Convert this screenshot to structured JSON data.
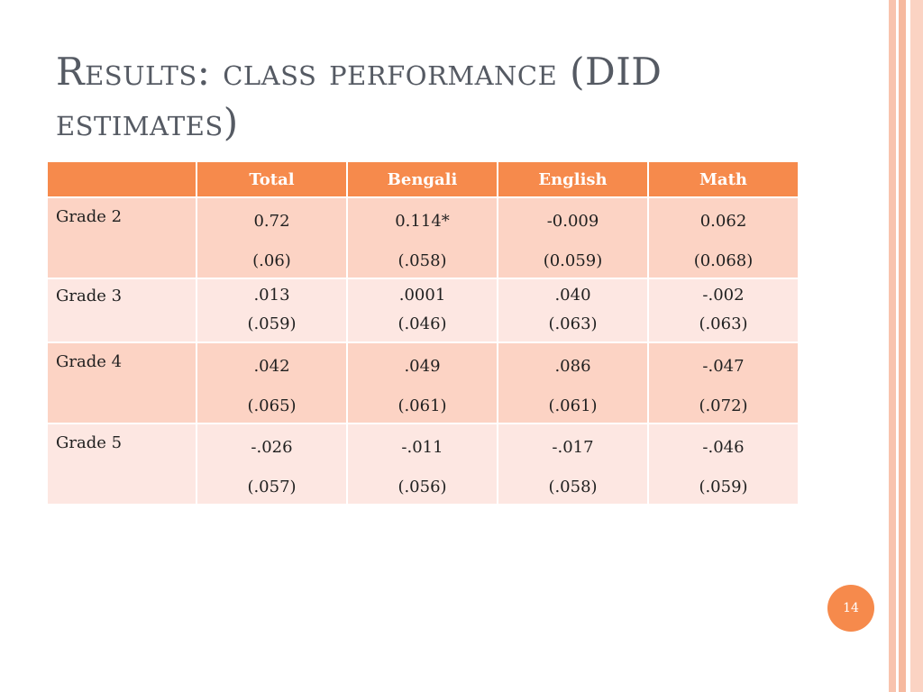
{
  "slide": {
    "title": "Results: class performance (DID estimates)",
    "page_number": "14",
    "colors": {
      "accent": "#f68a4c",
      "row_dark": "#fcd3c4",
      "row_light": "#fde7e2",
      "title_text": "#555a63"
    }
  },
  "table": {
    "headers": [
      "",
      "Total",
      "Bengali",
      "English",
      "Math"
    ],
    "rows": [
      {
        "label": "Grade 2",
        "cells": [
          {
            "coef": "0.72",
            "se": "(.06)"
          },
          {
            "coef": "0.114*",
            "se": "(.058)"
          },
          {
            "coef": "-0.009",
            "se": "(0.059)"
          },
          {
            "coef": "0.062",
            "se": "(0.068)"
          }
        ]
      },
      {
        "label": "Grade 3",
        "cells": [
          {
            "coef": ".013",
            "se": "(.059)"
          },
          {
            "coef": ".0001",
            "se": "(.046)"
          },
          {
            "coef": ".040",
            "se": "(.063)"
          },
          {
            "coef": "-.002",
            "se": "(.063)"
          }
        ]
      },
      {
        "label": "Grade 4",
        "cells": [
          {
            "coef": ".042",
            "se": "(.065)"
          },
          {
            "coef": ".049",
            "se": "(.061)"
          },
          {
            "coef": ".086",
            "se": "(.061)"
          },
          {
            "coef": "-.047",
            "se": "(.072)"
          }
        ]
      },
      {
        "label": "Grade 5",
        "cells": [
          {
            "coef": "-.026",
            "se": "(.057)"
          },
          {
            "coef": "-.011",
            "se": "(.056)"
          },
          {
            "coef": "-.017",
            "se": "(.058)"
          },
          {
            "coef": "-.046",
            "se": "(.059)"
          }
        ]
      }
    ]
  }
}
